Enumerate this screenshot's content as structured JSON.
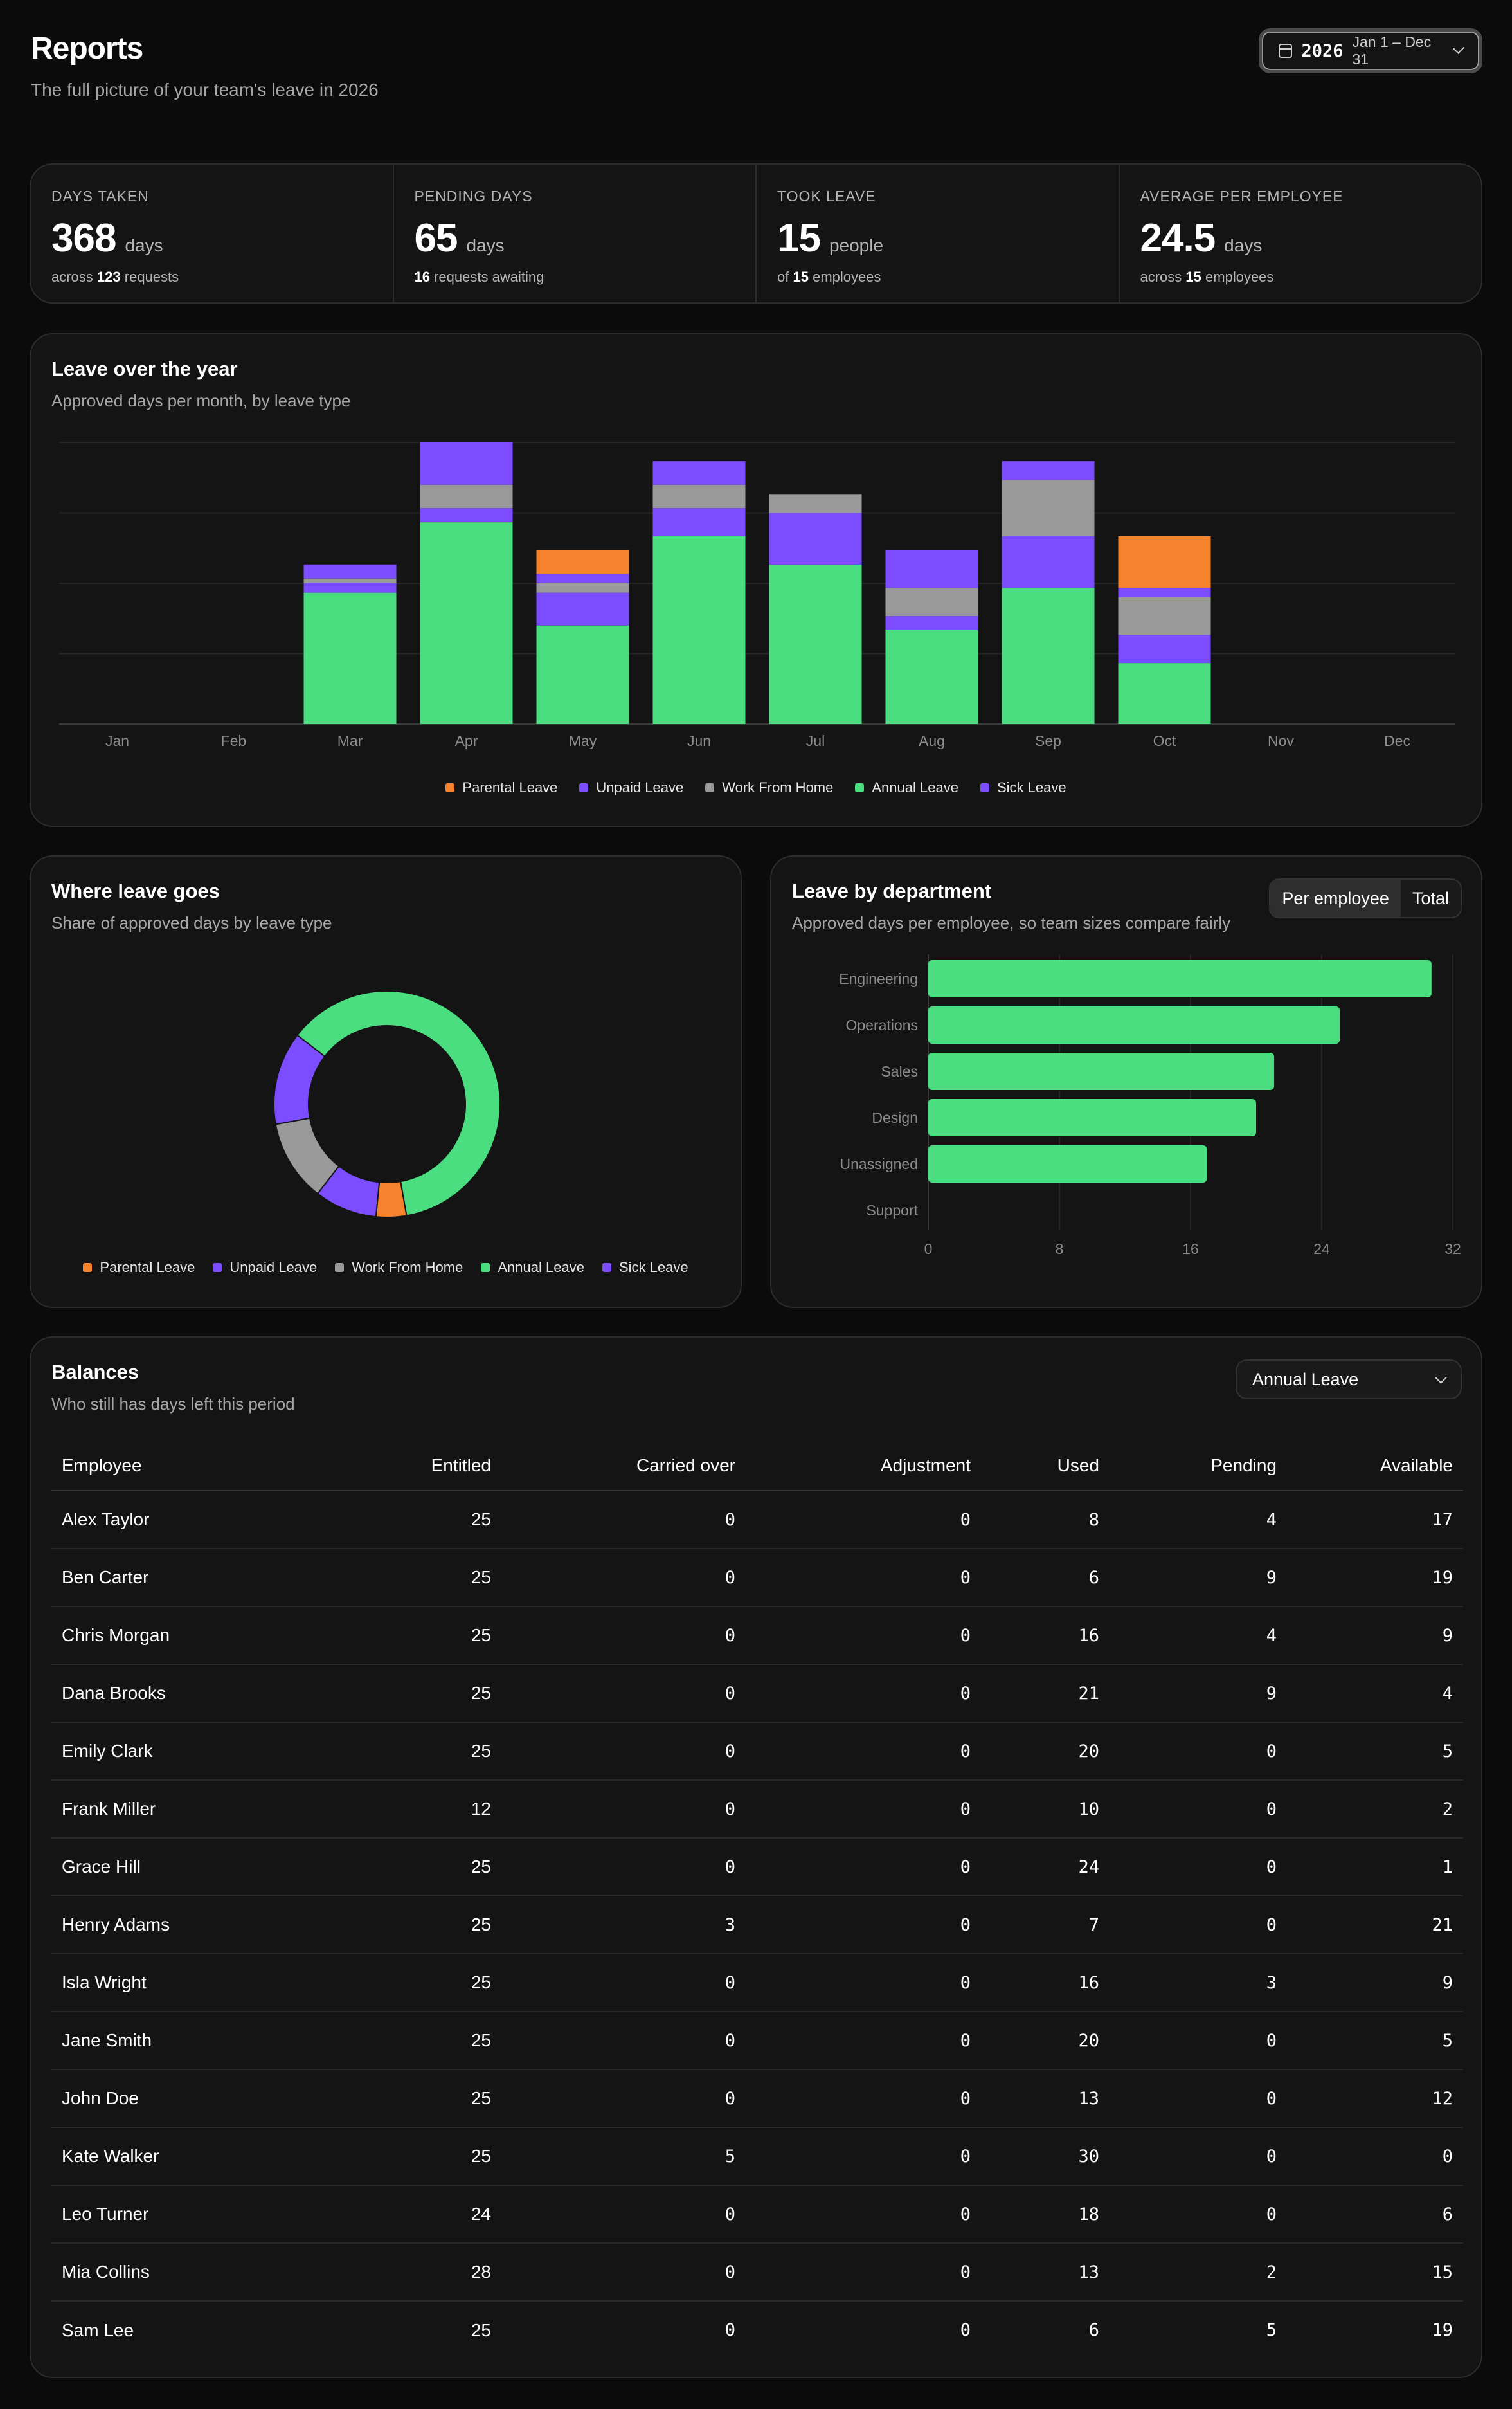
{
  "header": {
    "title": "Reports",
    "subtitle": "The full picture of your team's leave in 2026",
    "date_picker": {
      "year": "2026",
      "range": "Jan 1 – Dec 31"
    }
  },
  "stats": [
    {
      "label": "DAYS TAKEN",
      "value": "368",
      "unit": "days",
      "sub_pre": "across",
      "sub_bold": "123",
      "sub_post": "requests"
    },
    {
      "label": "PENDING DAYS",
      "value": "65",
      "unit": "days",
      "sub_pre": "",
      "sub_bold": "16",
      "sub_post": "requests awaiting"
    },
    {
      "label": "TOOK LEAVE",
      "value": "15",
      "unit": "people",
      "sub_pre": "of",
      "sub_bold": "15",
      "sub_post": "employees"
    },
    {
      "label": "AVERAGE PER EMPLOYEE",
      "value": "24.5",
      "unit": "days",
      "sub_pre": "across",
      "sub_bold": "15",
      "sub_post": "employees"
    }
  ],
  "colors": {
    "parental": "#f5832e",
    "unpaid": "#7c4dff",
    "wfh": "#9a9a9a",
    "annual": "#4ade80",
    "sick": "#7c4dff"
  },
  "chart_data": [
    {
      "type": "bar",
      "title": "Leave over the year",
      "subtitle": "Approved days per month, by leave type",
      "stacked": true,
      "categories": [
        "Jan",
        "Feb",
        "Mar",
        "Apr",
        "May",
        "Jun",
        "Jul",
        "Aug",
        "Sep",
        "Oct",
        "Nov",
        "Dec"
      ],
      "ylim": [
        0,
        60
      ],
      "grid": true,
      "legend_position": "bottom",
      "series": [
        {
          "name": "Annual Leave",
          "key": "annual",
          "values": [
            0,
            0,
            28,
            43,
            21,
            40,
            34,
            20,
            29,
            13,
            0,
            0
          ]
        },
        {
          "name": "Sick Leave",
          "key": "sick",
          "values": [
            0,
            0,
            2,
            3,
            7,
            6,
            11,
            3,
            11,
            6,
            0,
            0
          ]
        },
        {
          "name": "Work From Home",
          "key": "wfh",
          "values": [
            0,
            0,
            1,
            5,
            2,
            5,
            4,
            6,
            12,
            8,
            0,
            0
          ]
        },
        {
          "name": "Unpaid Leave",
          "key": "unpaid",
          "values": [
            0,
            0,
            3,
            9,
            2,
            5,
            0,
            8,
            4,
            2,
            0,
            0
          ]
        },
        {
          "name": "Parental Leave",
          "key": "parental",
          "values": [
            0,
            0,
            0,
            0,
            5,
            0,
            0,
            0,
            0,
            11,
            0,
            0
          ]
        }
      ],
      "legend": [
        "Parental Leave",
        "Unpaid Leave",
        "Work From Home",
        "Annual Leave",
        "Sick Leave"
      ]
    },
    {
      "type": "pie",
      "donut": true,
      "title": "Where leave goes",
      "subtitle": "Share of approved days by leave type",
      "legend_position": "bottom",
      "slices": [
        {
          "name": "Parental Leave",
          "key": "parental",
          "value": 16
        },
        {
          "name": "Unpaid Leave",
          "key": "unpaid",
          "value": 33
        },
        {
          "name": "Work From Home",
          "key": "wfh",
          "value": 43
        },
        {
          "name": "Sick Leave",
          "key": "sick",
          "value": 49
        },
        {
          "name": "Annual Leave",
          "key": "annual",
          "value": 228
        }
      ],
      "legend": [
        "Parental Leave",
        "Unpaid Leave",
        "Work From Home",
        "Annual Leave",
        "Sick Leave"
      ]
    },
    {
      "type": "bar",
      "orientation": "horizontal",
      "title": "Leave by department",
      "subtitle": "Approved days per employee, so team sizes compare fairly",
      "categories": [
        "Engineering",
        "Operations",
        "Sales",
        "Design",
        "Unassigned",
        "Support"
      ],
      "values": [
        30.7,
        25.1,
        21.1,
        20.0,
        17.0,
        0
      ],
      "xlim": [
        0,
        32
      ],
      "xticks": [
        "0",
        "8",
        "16",
        "24",
        "32"
      ],
      "grid": true
    }
  ],
  "department_toggle": {
    "options": [
      "Per employee",
      "Total"
    ],
    "active": "Per employee"
  },
  "balances": {
    "title": "Balances",
    "subtitle": "Who still has days left this period",
    "type_select": "Annual Leave",
    "columns": [
      "Employee",
      "Entitled",
      "Carried over",
      "Adjustment",
      "Used",
      "Pending",
      "Available"
    ],
    "rows": [
      [
        "Alex Taylor",
        "25",
        "0",
        "0",
        "8",
        "4",
        "17"
      ],
      [
        "Ben Carter",
        "25",
        "0",
        "0",
        "6",
        "9",
        "19"
      ],
      [
        "Chris Morgan",
        "25",
        "0",
        "0",
        "16",
        "4",
        "9"
      ],
      [
        "Dana Brooks",
        "25",
        "0",
        "0",
        "21",
        "9",
        "4"
      ],
      [
        "Emily Clark",
        "25",
        "0",
        "0",
        "20",
        "0",
        "5"
      ],
      [
        "Frank Miller",
        "12",
        "0",
        "0",
        "10",
        "0",
        "2"
      ],
      [
        "Grace Hill",
        "25",
        "0",
        "0",
        "24",
        "0",
        "1"
      ],
      [
        "Henry Adams",
        "25",
        "3",
        "0",
        "7",
        "0",
        "21"
      ],
      [
        "Isla Wright",
        "25",
        "0",
        "0",
        "16",
        "3",
        "9"
      ],
      [
        "Jane Smith",
        "25",
        "0",
        "0",
        "20",
        "0",
        "5"
      ],
      [
        "John Doe",
        "25",
        "0",
        "0",
        "13",
        "0",
        "12"
      ],
      [
        "Kate Walker",
        "25",
        "5",
        "0",
        "30",
        "0",
        "0"
      ],
      [
        "Leo Turner",
        "24",
        "0",
        "0",
        "18",
        "0",
        "6"
      ],
      [
        "Mia Collins",
        "28",
        "0",
        "0",
        "13",
        "2",
        "15"
      ],
      [
        "Sam Lee",
        "25",
        "0",
        "0",
        "6",
        "5",
        "19"
      ]
    ]
  }
}
